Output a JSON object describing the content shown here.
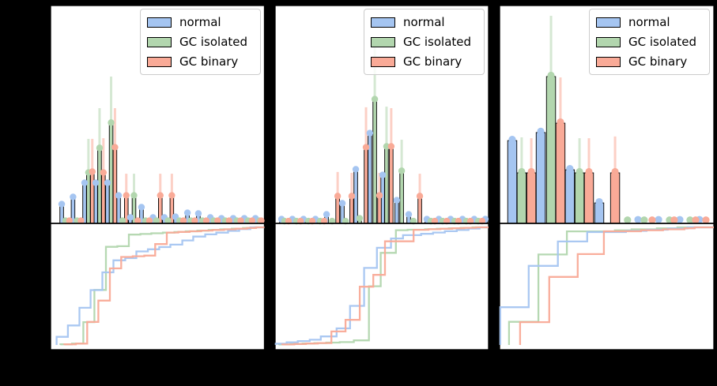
{
  "legend": {
    "items": [
      {
        "label": "normal",
        "color": "#a5c5f1"
      },
      {
        "label": "GC isolated",
        "color": "#b2d6ae"
      },
      {
        "label": "GC binary",
        "color": "#f9aa97"
      }
    ]
  },
  "chart_data": {
    "type": "bar",
    "description": "Three panels; each has a top histogram (stem/bar with error bars and circular markers, 3 series) and a bottom cumulative step distribution derived from the same values. No axis tick labels are visible (black on black background). x/h/err are fractions of panel width / top-panel height.",
    "series_names": [
      "normal",
      "GC isolated",
      "GC binary"
    ],
    "layout": {
      "grid": false,
      "legend_position": "upper right",
      "background": "#000000",
      "panel_background": "#ffffff"
    },
    "panels": [
      {
        "bar_width": 4.6,
        "marker_r": 4.2,
        "series": [
          {
            "name": "normal",
            "stems": [
              [
                0.052,
                0.083,
                0
              ],
              [
                0.105,
                0.116,
                0
              ],
              [
                0.159,
                0.181,
                0
              ],
              [
                0.211,
                0.181,
                0
              ],
              [
                0.266,
                0.181,
                0
              ],
              [
                0.318,
                0.123,
                0
              ],
              [
                0.373,
                0.022,
                0
              ],
              [
                0.425,
                0.069,
                0
              ],
              [
                0.479,
                0.022,
                0
              ],
              [
                0.532,
                0.022,
                0
              ],
              [
                0.584,
                0.025,
                0
              ],
              [
                0.64,
                0.043,
                0
              ],
              [
                0.691,
                0.04,
                0
              ],
              [
                0.747,
                0.022,
                0
              ],
              [
                0.799,
                0.018,
                0
              ],
              [
                0.854,
                0.018,
                0
              ],
              [
                0.906,
                0.018,
                0
              ],
              [
                0.958,
                0.018,
                0
              ]
            ]
          },
          {
            "name": "GC isolated",
            "stems": [
              [
                0.07,
                0.007,
                0
              ],
              [
                0.124,
                0.007,
                0
              ],
              [
                0.177,
                0.228,
                0.388
              ],
              [
                0.229,
                0.341,
                0.529
              ],
              [
                0.283,
                0.457,
                0.674
              ],
              [
                0.336,
                0.007,
                0
              ],
              [
                0.39,
                0.123,
                0.228
              ],
              [
                0.444,
                0.007,
                0
              ],
              [
                0.495,
                0.007,
                0
              ],
              [
                0.549,
                0.007,
                0
              ],
              [
                0.603,
                0.007,
                0
              ],
              [
                0.656,
                0.007,
                0
              ],
              [
                0.71,
                0.007,
                0
              ],
              [
                0.763,
                0.007,
                0
              ],
              [
                0.817,
                0.007,
                0
              ],
              [
                0.871,
                0.007,
                0
              ],
              [
                0.924,
                0.007,
                0
              ],
              [
                0.978,
                0.007,
                0
              ]
            ]
          },
          {
            "name": "GC binary",
            "stems": [
              [
                0.088,
                0.007,
                0
              ],
              [
                0.142,
                0.007,
                0
              ],
              [
                0.195,
                0.232,
                0.388
              ],
              [
                0.247,
                0.228,
                0.391
              ],
              [
                0.301,
                0.344,
                0.529
              ],
              [
                0.354,
                0.123,
                0.228
              ],
              [
                0.408,
                0.007,
                0
              ],
              [
                0.462,
                0.007,
                0
              ],
              [
                0.513,
                0.123,
                0.228
              ],
              [
                0.567,
                0.123,
                0.228
              ],
              [
                0.621,
                0.007,
                0
              ],
              [
                0.674,
                0.007,
                0
              ],
              [
                0.728,
                0.007,
                0
              ],
              [
                0.781,
                0.007,
                0
              ],
              [
                0.835,
                0.007,
                0
              ],
              [
                0.889,
                0.007,
                0
              ],
              [
                0.942,
                0.007,
                0
              ],
              [
                0.985,
                0.007,
                0
              ]
            ]
          }
        ]
      },
      {
        "bar_width": 4.6,
        "marker_r": 4.2,
        "series": [
          {
            "name": "normal",
            "stems": [
              [
                0.03,
                0.014,
                0
              ],
              [
                0.081,
                0.014,
                0
              ],
              [
                0.133,
                0.014,
                0
              ],
              [
                0.189,
                0.014,
                0
              ],
              [
                0.241,
                0.036,
                0
              ],
              [
                0.315,
                0.087,
                0
              ],
              [
                0.378,
                0.243,
                0
              ],
              [
                0.444,
                0.409,
                0
              ],
              [
                0.504,
                0.217,
                0
              ],
              [
                0.57,
                0.101,
                0
              ],
              [
                0.626,
                0.036,
                0
              ],
              [
                0.711,
                0.014,
                0
              ],
              [
                0.767,
                0.014,
                0
              ],
              [
                0.822,
                0.014,
                0
              ],
              [
                0.878,
                0.014,
                0
              ],
              [
                0.933,
                0.014,
                0
              ],
              [
                0.985,
                0.014,
                0
              ]
            ]
          },
          {
            "name": "GC isolated",
            "stems": [
              [
                0.044,
                0.005,
                0
              ],
              [
                0.1,
                0.005,
                0
              ],
              [
                0.156,
                0.005,
                0
              ],
              [
                0.211,
                0.005,
                0
              ],
              [
                0.267,
                0.005,
                0
              ],
              [
                0.33,
                0.005,
                0
              ],
              [
                0.396,
                0.018,
                0
              ],
              [
                0.467,
                0.565,
                0.819
              ],
              [
                0.522,
                0.348,
                0.536
              ],
              [
                0.593,
                0.236,
                0.384
              ],
              [
                0.648,
                0.005,
                0
              ],
              [
                0.73,
                0.005,
                0
              ],
              [
                0.785,
                0.005,
                0
              ],
              [
                0.841,
                0.005,
                0
              ],
              [
                0.896,
                0.005,
                0
              ],
              [
                0.952,
                0.005,
                0
              ]
            ]
          },
          {
            "name": "GC binary",
            "stems": [
              [
                0.063,
                0.005,
                0
              ],
              [
                0.119,
                0.005,
                0
              ],
              [
                0.174,
                0.005,
                0
              ],
              [
                0.23,
                0.005,
                0
              ],
              [
                0.293,
                0.12,
                0.236
              ],
              [
                0.359,
                0.12,
                0.232
              ],
              [
                0.426,
                0.344,
                0.533
              ],
              [
                0.489,
                0.123,
                0.232
              ],
              [
                0.544,
                0.348,
                0.529
              ],
              [
                0.678,
                0.12,
                0.228
              ],
              [
                0.748,
                0.005,
                0
              ],
              [
                0.804,
                0.005,
                0
              ],
              [
                0.859,
                0.005,
                0
              ],
              [
                0.915,
                0.005,
                0
              ],
              [
                0.97,
                0.005,
                0
              ]
            ]
          }
        ]
      },
      {
        "bar_width": 11.5,
        "marker_r": 4.6,
        "series": [
          {
            "name": "normal",
            "stems": [
              [
                0.059,
                0.38,
                0
              ],
              [
                0.192,
                0.417,
                0
              ],
              [
                0.328,
                0.246,
                0
              ],
              [
                0.465,
                0.094,
                0
              ],
              [
                0.646,
                0.012,
                0
              ],
              [
                0.742,
                0.012,
                0
              ],
              [
                0.841,
                0.012,
                0
              ],
              [
                0.933,
                0.012,
                0
              ]
            ]
          },
          {
            "name": "GC isolated",
            "stems": [
              [
                0.103,
                0.232,
                0.395
              ],
              [
                0.24,
                0.674,
                0.953
              ],
              [
                0.373,
                0.232,
                0.391
              ],
              [
                0.597,
                0.01,
                0
              ],
              [
                0.675,
                0.01,
                0
              ],
              [
                0.793,
                0.01,
                0
              ],
              [
                0.889,
                0.01,
                0
              ]
            ]
          },
          {
            "name": "GC binary",
            "stems": [
              [
                0.148,
                0.232,
                0.391
              ],
              [
                0.284,
                0.46,
                0.67
              ],
              [
                0.417,
                0.232,
                0.391
              ],
              [
                0.539,
                0.232,
                0.399
              ],
              [
                0.712,
                0.01,
                0
              ],
              [
                0.815,
                0.01,
                0
              ],
              [
                0.915,
                0.01,
                0
              ],
              [
                0.963,
                0.01,
                0
              ]
            ]
          }
        ]
      }
    ]
  }
}
